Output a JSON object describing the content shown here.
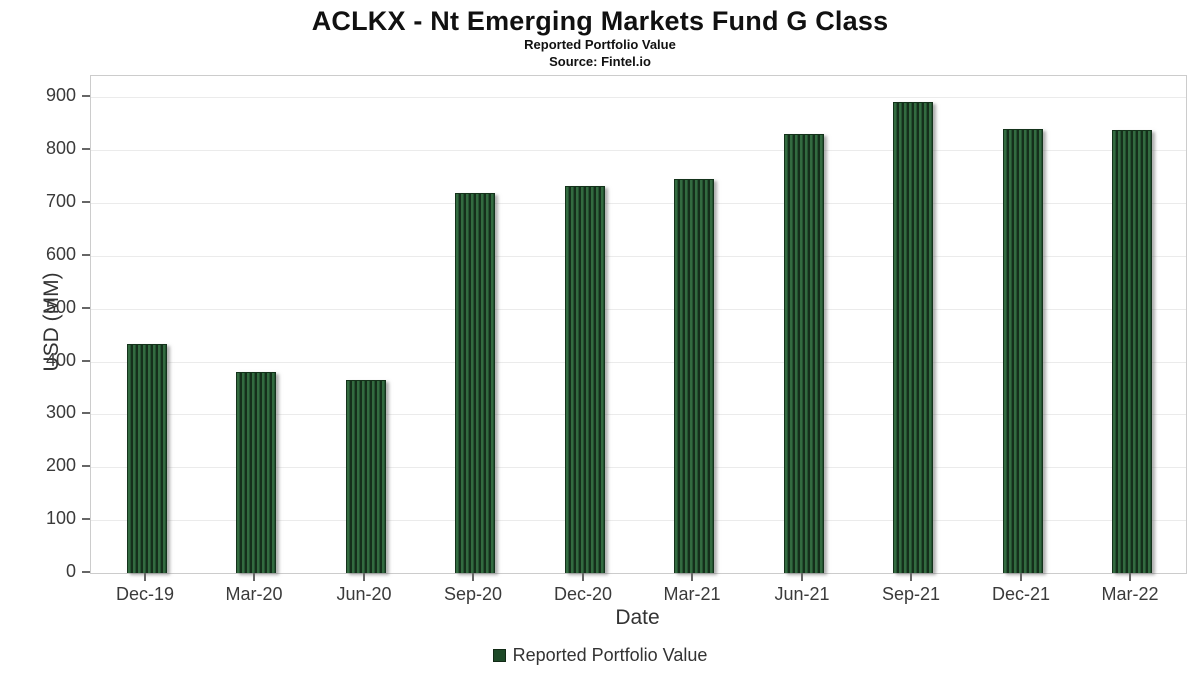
{
  "title": "ACLKX - Nt Emerging Markets Fund G Class",
  "subtitle": "Reported Portfolio Value",
  "source": "Source: Fintel.io",
  "chart_data": {
    "type": "bar",
    "title": "ACLKX - Nt Emerging Markets Fund G Class",
    "subtitle": "Reported Portfolio Value",
    "source": "Source: Fintel.io",
    "categories": [
      "Dec-19",
      "Mar-20",
      "Jun-20",
      "Sep-20",
      "Dec-20",
      "Mar-21",
      "Jun-21",
      "Sep-21",
      "Dec-21",
      "Mar-22"
    ],
    "values": [
      431,
      379,
      364,
      716,
      730,
      743,
      829,
      888,
      838,
      836
    ],
    "series_name": "Reported Portfolio Value",
    "xlabel": "Date",
    "ylabel": "USD (MM)",
    "ylim": [
      0,
      900
    ],
    "ytick_step": 100,
    "grid": true,
    "legend_position": "bottom-center",
    "legend_label": "Reported Portfolio Value",
    "colors": {
      "bar_light": "#336b40",
      "bar_mid": "#245231",
      "bar_dark": "#152f1b",
      "grid": "#ebebeb",
      "tick_text": "#3a3a3a"
    }
  }
}
